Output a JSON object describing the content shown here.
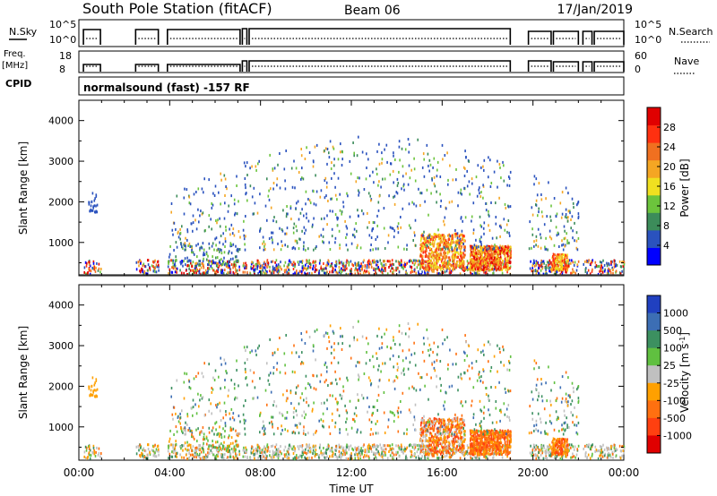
{
  "header": {
    "title": "South Pole Station (fitACF)",
    "beam": "Beam 06",
    "date": "17/Jan/2019",
    "cpid_label": "CPID",
    "program": "normalsound (fast) -157 RF"
  },
  "chart_data": [
    {
      "type": "line",
      "name_label": "N.Sky",
      "right_label": "N.Search",
      "left_ticks": [
        "10^5",
        "10^0"
      ],
      "right_ticks": [
        "10^5",
        "10^0"
      ],
      "x_range_hours": [
        0,
        24
      ],
      "segments_hours": [
        [
          0.2,
          0.95
        ],
        [
          2.5,
          3.5
        ],
        [
          3.9,
          7.1
        ],
        [
          7.2,
          7.4
        ],
        [
          7.5,
          19.0
        ],
        [
          19.8,
          20.8
        ],
        [
          20.9,
          22.0
        ],
        [
          22.2,
          22.6
        ],
        [
          22.7,
          24.0
        ]
      ]
    },
    {
      "type": "line",
      "name_label": "Freq. [MHz]",
      "freq_label": "Freq.",
      "freq_unit": "[MHz]",
      "right_label": "Nave",
      "left_ticks": [
        "18",
        "8"
      ],
      "right_ticks": [
        "60",
        "0"
      ],
      "x_range_hours": [
        0,
        24
      ],
      "segments_hours": [
        [
          0.2,
          0.95
        ],
        [
          2.5,
          3.5
        ],
        [
          3.9,
          7.1
        ],
        [
          7.2,
          7.4
        ],
        [
          7.5,
          19.0
        ],
        [
          19.8,
          20.8
        ],
        [
          20.9,
          22.0
        ],
        [
          22.2,
          22.6
        ],
        [
          22.7,
          24.0
        ]
      ]
    },
    {
      "type": "heatmap",
      "ylabel": "Slant Range [km]",
      "y_ticks": [
        1000,
        2000,
        3000,
        4000
      ],
      "ylim": [
        180,
        4500
      ],
      "x_ticks": [
        "00:00",
        "04:00",
        "08:00",
        "12:00",
        "16:00",
        "20:00",
        "00:00"
      ],
      "x_range_hours": [
        0,
        24
      ],
      "colorbar": {
        "label": "Power [dB]",
        "ticks": [
          "4",
          "8",
          "12",
          "16",
          "20",
          "24",
          "28"
        ],
        "colors": [
          "#0000ff",
          "#2a52be",
          "#3c8c5a",
          "#6cc43c",
          "#f0e020",
          "#f5a623",
          "#f07020",
          "#ff3010",
          "#e00000"
        ]
      }
    },
    {
      "type": "heatmap",
      "ylabel": "Slant Range [km]",
      "y_ticks": [
        1000,
        2000,
        3000,
        4000
      ],
      "ylim": [
        180,
        4500
      ],
      "x_ticks": [
        "00:00",
        "04:00",
        "08:00",
        "12:00",
        "16:00",
        "20:00",
        "00:00"
      ],
      "x_range_hours": [
        0,
        24
      ],
      "xlabel": "Time UT",
      "colorbar": {
        "label": "Velocity [m s^-1]",
        "ticks": [
          "1000",
          "500",
          "100",
          "25",
          "-25",
          "-100",
          "-500",
          "-1000"
        ],
        "colors": [
          "#2040c0",
          "#3c6eb4",
          "#3c9060",
          "#60c040",
          "#c0c0c0",
          "#ffa000",
          "#ff7010",
          "#ff4010",
          "#e00000"
        ]
      }
    }
  ]
}
